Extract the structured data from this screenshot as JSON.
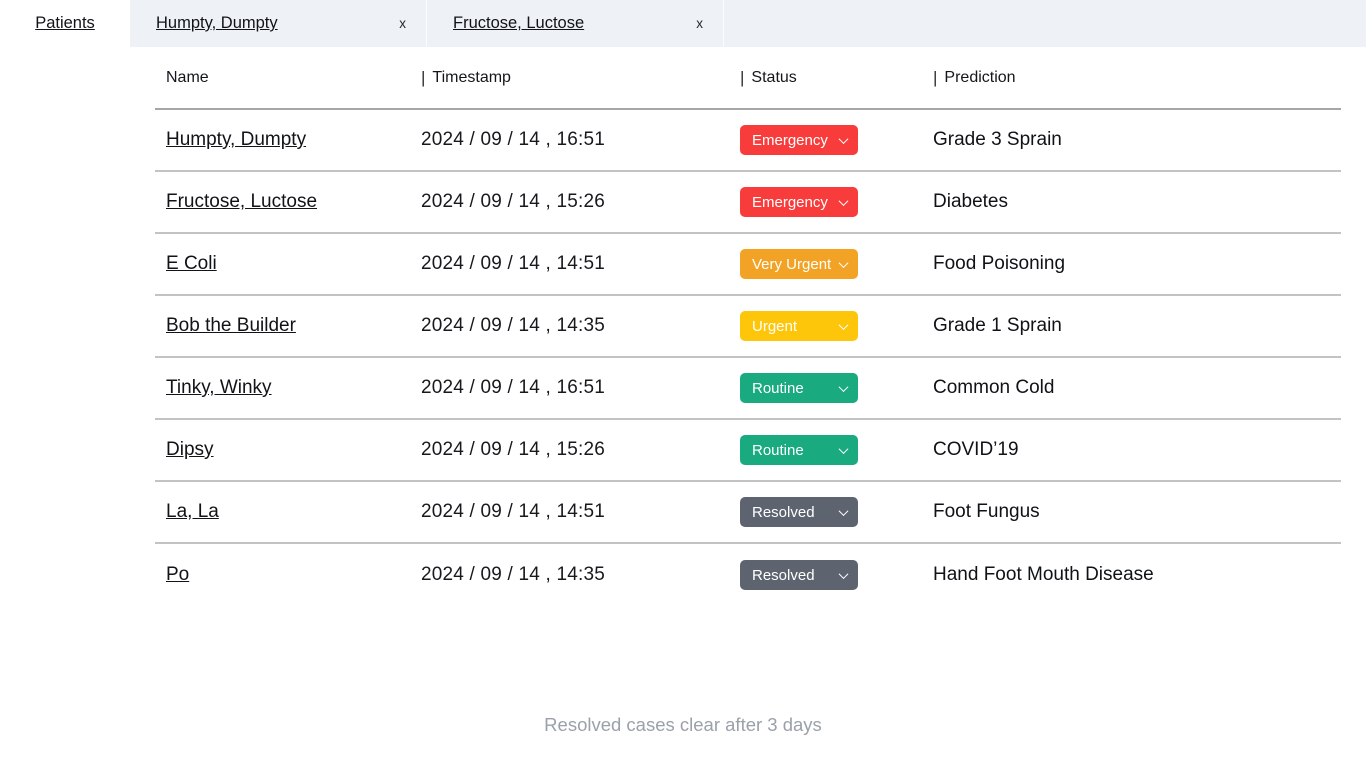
{
  "tabbar": {
    "patients_label": "Patients",
    "open_tabs": [
      {
        "label": "Humpty, Dumpty",
        "close_label": "x"
      },
      {
        "label": "Fructose, Luctose",
        "close_label": "x"
      }
    ]
  },
  "table": {
    "columns": [
      "Name",
      "Timestamp",
      "Status",
      "Prediction"
    ],
    "rows": [
      {
        "name": "Humpty, Dumpty",
        "timestamp": "2024 / 09 / 14 , 16:51",
        "status": "Emergency",
        "status_color": "#F83B3B",
        "prediction": "Grade 3 Sprain"
      },
      {
        "name": "Fructose, Luctose",
        "timestamp": "2024 / 09 / 14 , 15:26",
        "status": "Emergency",
        "status_color": "#F83B3B",
        "prediction": "Diabetes"
      },
      {
        "name": "E Coli",
        "timestamp": "2024 / 09 / 14 , 14:51",
        "status": "Very Urgent",
        "status_color": "#F2A325",
        "prediction": "Food Poisoning"
      },
      {
        "name": "Bob the Builder",
        "timestamp": "2024 / 09 / 14 , 14:35",
        "status": "Urgent",
        "status_color": "#FEC60B",
        "prediction": "Grade 1 Sprain"
      },
      {
        "name": "Tinky, Winky",
        "timestamp": "2024 / 09 / 14 , 16:51",
        "status": "Routine",
        "status_color": "#1AAA80",
        "prediction": "Common Cold"
      },
      {
        "name": "Dipsy",
        "timestamp": "2024 / 09 / 14 , 15:26",
        "status": "Routine",
        "status_color": "#1AAA80",
        "prediction": "COVID’19"
      },
      {
        "name": "La, La",
        "timestamp": "2024 / 09 / 14 , 14:51",
        "status": "Resolved",
        "status_color": "#5D6470",
        "prediction": "Foot Fungus"
      },
      {
        "name": "Po",
        "timestamp": "2024 / 09 / 14 , 14:35",
        "status": "Resolved",
        "status_color": "#5D6470",
        "prediction": "Hand Foot Mouth Disease"
      }
    ]
  },
  "footer": {
    "note": "Resolved cases clear after 3 days"
  },
  "colors": {
    "emergency": "#F83B3B",
    "very_urgent": "#F2A325",
    "urgent": "#FEC60B",
    "routine": "#1AAA80",
    "resolved": "#5D6470",
    "tab_strip_bg": "#EEF1F5"
  }
}
